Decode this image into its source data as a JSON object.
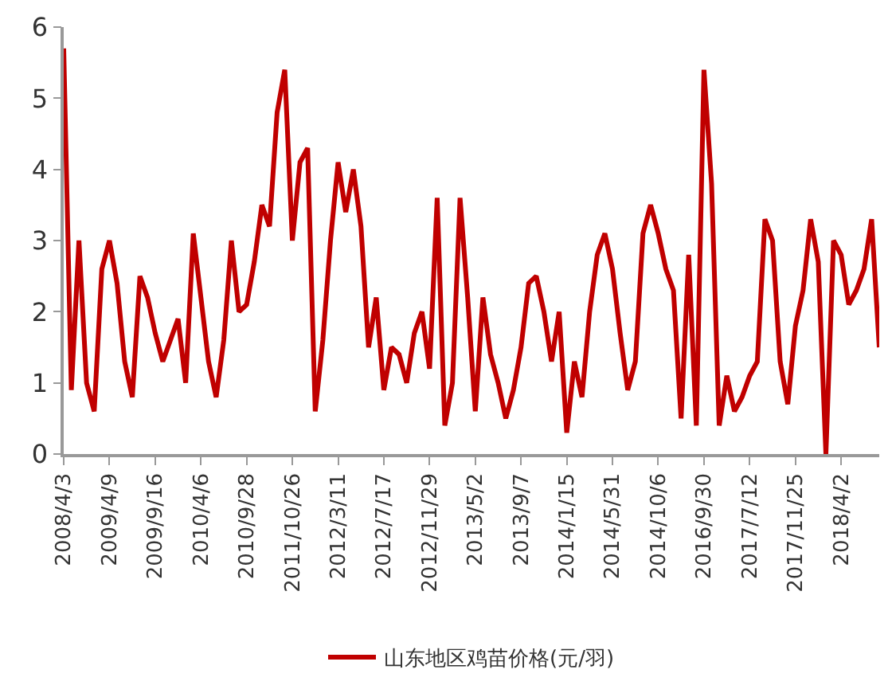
{
  "chart_data": {
    "type": "line",
    "categories": [
      "2008/4/3",
      null,
      null,
      null,
      null,
      null,
      "2009/4/9",
      null,
      null,
      null,
      null,
      null,
      "2009/9/16",
      null,
      null,
      null,
      null,
      null,
      "2010/4/6",
      null,
      null,
      null,
      null,
      null,
      "2010/9/28",
      null,
      null,
      null,
      null,
      null,
      "2011/10/26",
      null,
      null,
      null,
      null,
      null,
      "2012/3/11",
      null,
      null,
      null,
      null,
      null,
      "2012/7/17",
      null,
      null,
      null,
      null,
      null,
      "2012/11/29",
      null,
      null,
      null,
      null,
      null,
      "2013/5/2",
      null,
      null,
      null,
      null,
      null,
      "2013/9/7",
      null,
      null,
      null,
      null,
      null,
      "2014/1/15",
      null,
      null,
      null,
      null,
      null,
      "2014/5/31",
      null,
      null,
      null,
      null,
      null,
      "2014/10/6",
      null,
      null,
      null,
      null,
      null,
      "2016/9/30",
      null,
      null,
      null,
      null,
      null,
      "2017/7/12",
      null,
      null,
      null,
      null,
      null,
      "2017/11/25",
      null,
      null,
      null,
      null,
      null,
      "2018/4/2",
      null,
      null,
      null,
      null,
      null
    ],
    "series": [
      {
        "name": "山东地区鸡苗价格(元/羽)",
        "color": "#c00000",
        "values": [
          5.7,
          0.9,
          3.0,
          1.0,
          0.6,
          2.6,
          3.0,
          2.4,
          1.3,
          0.8,
          2.5,
          2.2,
          1.7,
          1.3,
          1.6,
          1.9,
          1.0,
          3.1,
          2.2,
          1.3,
          0.8,
          1.6,
          3.0,
          2.0,
          2.1,
          2.7,
          3.5,
          3.2,
          4.8,
          5.4,
          3.0,
          4.1,
          4.3,
          0.6,
          1.6,
          3.0,
          4.1,
          3.4,
          4.0,
          3.2,
          1.5,
          2.2,
          0.9,
          1.5,
          1.4,
          1.0,
          1.7,
          2.0,
          1.2,
          3.6,
          0.4,
          1.0,
          3.6,
          2.2,
          0.6,
          2.2,
          1.4,
          1.0,
          0.5,
          0.9,
          1.5,
          2.4,
          2.5,
          2.0,
          1.3,
          2.0,
          0.3,
          1.3,
          0.8,
          2.0,
          2.8,
          3.1,
          2.6,
          1.7,
          0.9,
          1.3,
          3.1,
          3.5,
          3.1,
          2.6,
          2.3,
          0.5,
          2.8,
          0.4,
          5.4,
          3.8,
          0.4,
          1.1,
          0.6,
          0.8,
          1.1,
          1.3,
          3.3,
          3.0,
          1.3,
          0.7,
          1.8,
          2.3,
          3.3,
          2.7,
          0,
          3.0,
          2.8,
          2.1,
          2.3,
          2.6,
          3.3,
          1.5
        ]
      }
    ],
    "ylim": [
      0,
      6
    ],
    "yticks": [
      0,
      1,
      2,
      3,
      4,
      5,
      6
    ],
    "legend": "bottom",
    "line_style": "solid",
    "marker": "none"
  }
}
